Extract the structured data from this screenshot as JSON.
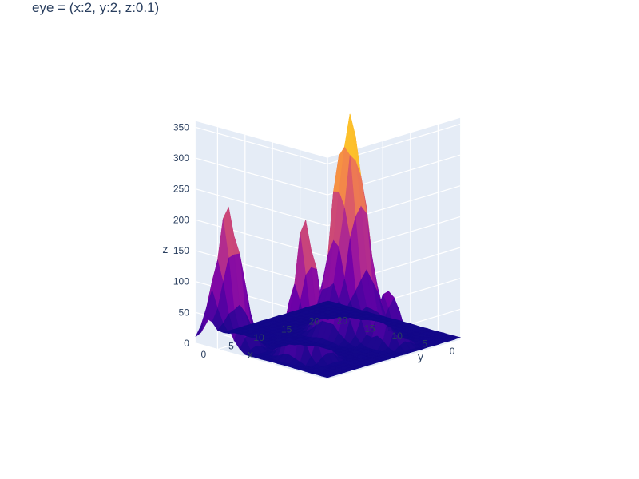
{
  "title": "eye = (x:2, y:2, z:0.1)",
  "chart_data": {
    "type": "surface",
    "title": "eye = (x:2, y:2, z:0.1)",
    "xlabel": "x",
    "ylabel": "y",
    "zlabel": "z",
    "x_ticks": [
      "0",
      "5",
      "10",
      "15",
      "20"
    ],
    "y_ticks": [
      "0",
      "5",
      "10",
      "15",
      "20"
    ],
    "z_ticks": [
      "0",
      "50",
      "100",
      "150",
      "200",
      "250",
      "300",
      "350"
    ],
    "xlim": [
      0,
      24
    ],
    "ylim": [
      0,
      24
    ],
    "zlim": [
      0,
      360
    ],
    "colorscale": "plasma",
    "colors": {
      "low": "#0d0887",
      "mid": "#9c179e",
      "high": "#f0f921"
    },
    "peaks": [
      {
        "x": 16,
        "y": 12,
        "z": 355
      },
      {
        "x": 2,
        "y": 20,
        "z": 210
      },
      {
        "x": 5,
        "y": 9,
        "z": 210
      },
      {
        "x": 16,
        "y": 5,
        "z": 100
      }
    ]
  }
}
